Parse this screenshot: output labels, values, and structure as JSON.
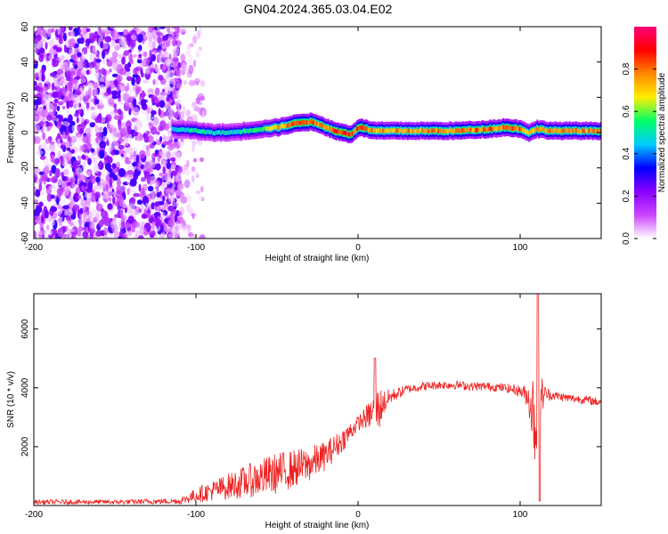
{
  "title": "GN04.2024.365.03.04.E02",
  "chart_data": [
    {
      "type": "heatmap",
      "xlabel": "Height of straight line (km)",
      "ylabel": "Frequency (Hz)",
      "xlim": [
        -200,
        150
      ],
      "ylim": [
        -60,
        60
      ],
      "xticks": [
        -200,
        -100,
        0,
        100
      ],
      "yticks": [
        60,
        40,
        20,
        0,
        -20,
        -40,
        -60
      ],
      "colorbar": {
        "label": "Normalized spectral amplitude",
        "range": [
          0,
          1
        ],
        "ticks": [
          0.0,
          0.2,
          0.4,
          0.6,
          0.8
        ],
        "tick_labels": [
          "0.0",
          "0.2",
          "0.4",
          "0.6",
          "0.8"
        ],
        "colormap": [
          "#ffffff",
          "#cc44ff",
          "#8800ff",
          "#0000ff",
          "#00ccff",
          "#00ff66",
          "#ffee00",
          "#ff8800",
          "#ff0000",
          "#ff0077"
        ]
      },
      "regions": {
        "noise": {
          "x_range": [
            -200,
            -110
          ],
          "y_range": [
            -60,
            60
          ],
          "level": 0.12
        },
        "sparse_noise": {
          "x_range": [
            -120,
            -95
          ],
          "y_range": [
            -60,
            60
          ],
          "level": 0.04
        }
      },
      "tone_ridge": {
        "x": [
          -115,
          -100,
          -90,
          -80,
          -70,
          -60,
          -50,
          -40,
          -35,
          -30,
          -25,
          -20,
          -15,
          -10,
          -5,
          0,
          5,
          10,
          20,
          40,
          60,
          80,
          90,
          100,
          105,
          110,
          120,
          150
        ],
        "freq": [
          2,
          1,
          0,
          0,
          1,
          2,
          3,
          5,
          6,
          6,
          5,
          3,
          1,
          0,
          -1,
          3,
          2,
          1,
          1,
          1,
          1,
          2,
          3,
          2,
          0,
          2,
          1,
          1
        ],
        "peak": [
          0.45,
          0.55,
          0.5,
          0.5,
          0.55,
          0.6,
          0.75,
          0.85,
          0.9,
          0.85,
          0.8,
          0.8,
          0.95,
          0.9,
          0.85,
          0.9,
          0.85,
          0.8,
          0.8,
          0.8,
          0.8,
          0.85,
          0.8,
          0.85,
          0.7,
          0.75,
          0.8,
          0.8
        ]
      }
    },
    {
      "type": "line",
      "xlabel": "Height of straight line (km)",
      "ylabel": "SNR (10 * v/v)",
      "xlim": [
        -200,
        150
      ],
      "ylim": [
        0,
        7200
      ],
      "xticks": [
        -200,
        -100,
        0,
        100
      ],
      "yticks": [
        2000,
        4000,
        6000
      ],
      "line_color": "#ee2222",
      "series": [
        {
          "x": [
            -200,
            -150,
            -110,
            -100,
            -90,
            -80,
            -70,
            -60,
            -50,
            -40,
            -30,
            -20,
            -10,
            -5,
            0,
            5,
            10,
            13,
            15,
            20,
            30,
            40,
            50,
            60,
            70,
            80,
            90,
            100,
            105,
            108,
            111,
            113,
            115,
            120,
            130,
            140,
            150
          ],
          "value": [
            120,
            120,
            150,
            350,
            500,
            650,
            800,
            950,
            1100,
            1250,
            1400,
            1700,
            2200,
            2500,
            2800,
            3000,
            3200,
            3300,
            3450,
            3700,
            3950,
            4050,
            4100,
            4100,
            4050,
            4050,
            4000,
            3900,
            3700,
            3200,
            2800,
            3700,
            3800,
            3750,
            3650,
            3600,
            3500
          ],
          "noise": [
            80,
            80,
            100,
            250,
            350,
            450,
            550,
            650,
            700,
            650,
            600,
            500,
            400,
            350,
            250,
            400,
            600,
            800,
            500,
            250,
            150,
            150,
            150,
            150,
            150,
            150,
            150,
            200,
            400,
            1500,
            2600,
            800,
            300,
            150,
            150,
            150,
            150
          ]
        }
      ]
    }
  ]
}
